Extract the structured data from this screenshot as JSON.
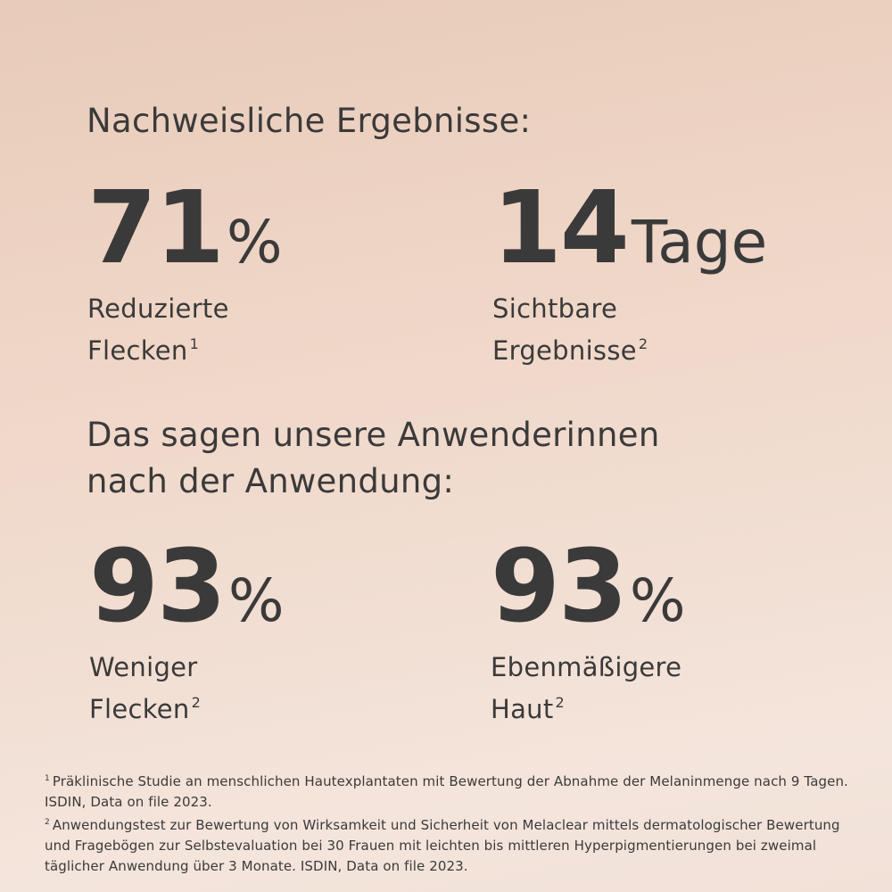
{
  "heading_1": "Nachweisliche Ergebnisse:",
  "stats_1": [
    {
      "value": 71,
      "unit": "%",
      "label_lines": [
        "Reduzierte",
        "Flecken"
      ],
      "footnote": "1"
    },
    {
      "value": 14,
      "unit": "Tage",
      "label_lines": [
        "Sichtbare",
        "Ergebnisse"
      ],
      "footnote": "2"
    }
  ],
  "heading_2": [
    "Das sagen unsere Anwenderinnen",
    "nach der Anwendung:"
  ],
  "stats_2": [
    {
      "value": 93,
      "unit": "%",
      "label_lines": [
        "Weniger",
        "Flecken"
      ],
      "footnote": "2"
    },
    {
      "value": 93,
      "unit": "%",
      "label_lines": [
        "Ebenmäßigere",
        "Haut"
      ],
      "footnote": "2"
    }
  ],
  "footnotes": [
    {
      "marker": "1",
      "text": "Präklinische Studie an menschlichen Hautexplantaten mit Bewertung der Abnahme der Melaninmenge nach 9 Tagen. ISDIN, Data on file 2023."
    },
    {
      "marker": "2",
      "text": "Anwendungstest zur Bewertung von Wirksamkeit und Sicherheit von Melaclear mittels dermatologischer Bewertung und Fragebögen zur Selbstevaluation bei 30 Frauen mit leichten bis mittleren Hyperpigmentierungen bei zweimal täglicher Anwendung über 3 Monate. ISDIN, Data on file 2023."
    }
  ]
}
